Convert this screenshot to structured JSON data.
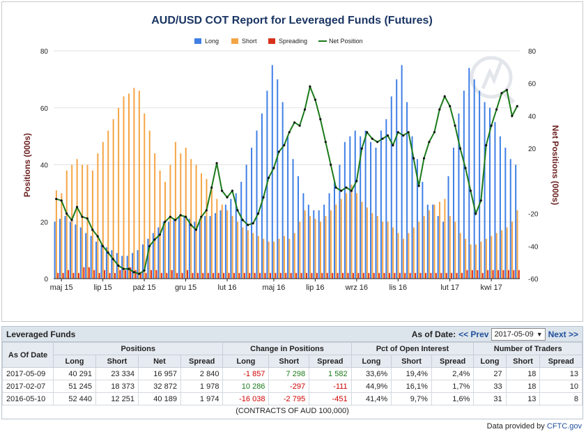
{
  "chart_data": {
    "type": "bar",
    "title": "AUD/USD COT Report for Leveraged Funds (Futures)",
    "ylabel": "Positions (000s)",
    "ylabel_right": "Net Positions (000s)",
    "ylim": [
      0,
      80
    ],
    "ylim_right": [
      -60,
      80
    ],
    "yticks": [
      "0",
      "20",
      "40",
      "60",
      "80"
    ],
    "yticks_right": [
      "-60",
      "-40",
      "-20",
      "20",
      "40",
      "60",
      "80"
    ],
    "xticks": [
      "maj 15",
      "lip 15",
      "paź 15",
      "gru 15",
      "lut 16",
      "maj 16",
      "lip 16",
      "wrz 16",
      "lis 16",
      "lut 17",
      "kwi 17"
    ],
    "xtick_index": [
      1,
      9,
      17,
      25,
      33,
      42,
      50,
      58,
      66,
      76,
      84
    ],
    "legend_placement": "top-center",
    "colors": {
      "long": "#3f7fe6",
      "short": "#f4a545",
      "spreading": "#d9301a",
      "net": "#1a7a1a"
    },
    "series": [
      {
        "name": "Long",
        "values": [
          20,
          21,
          22,
          20,
          19,
          18,
          16,
          15,
          13,
          12,
          11,
          10,
          9,
          8,
          8,
          9,
          10,
          12,
          14,
          16,
          18,
          20,
          20,
          21,
          22,
          22,
          21,
          20,
          21,
          22,
          22,
          23,
          24,
          26,
          28,
          30,
          34,
          40,
          46,
          52,
          58,
          66,
          75,
          70,
          62,
          50,
          42,
          36,
          30,
          26,
          24,
          24,
          26,
          30,
          34,
          40,
          48,
          50,
          52,
          50,
          52,
          48,
          46,
          52,
          56,
          64,
          70,
          75,
          62,
          50,
          42,
          34,
          26,
          26,
          22,
          20,
          36,
          46,
          58,
          66,
          74,
          70,
          66,
          62,
          60,
          55,
          50,
          46,
          42,
          40
        ]
      },
      {
        "name": "Short",
        "values": [
          31,
          30,
          38,
          40,
          42,
          40,
          40,
          38,
          44,
          48,
          52,
          56,
          60,
          64,
          65,
          67,
          66,
          58,
          52,
          44,
          38,
          34,
          40,
          48,
          44,
          46,
          42,
          40,
          37,
          35,
          32,
          28,
          26,
          24,
          22,
          20,
          18,
          17,
          16,
          15,
          14,
          13,
          13,
          14,
          15,
          14,
          16,
          20,
          24,
          22,
          21,
          20,
          22,
          24,
          26,
          28,
          30,
          33,
          30,
          27,
          25,
          23,
          22,
          20,
          20,
          18,
          16,
          14,
          16,
          18,
          20,
          22,
          24,
          26,
          27,
          28,
          22,
          20,
          16,
          14,
          12,
          12,
          13,
          14,
          15,
          16,
          17,
          18,
          20,
          24
        ]
      },
      {
        "name": "Spreading",
        "values": [
          2,
          2,
          3,
          2,
          2,
          4,
          4,
          3,
          2,
          3,
          2,
          2,
          3,
          3,
          4,
          3,
          2,
          2,
          3,
          3,
          2,
          2,
          3,
          2,
          2,
          3,
          2,
          2,
          2,
          2,
          2,
          2,
          2,
          2,
          2,
          2,
          2,
          2,
          2,
          2,
          2,
          2,
          2,
          2,
          2,
          2,
          2,
          2,
          2,
          2,
          2,
          2,
          2,
          2,
          2,
          2,
          2,
          2,
          2,
          2,
          2,
          2,
          2,
          2,
          2,
          2,
          2,
          2,
          2,
          2,
          2,
          2,
          2,
          2,
          2,
          2,
          2,
          2,
          2,
          3,
          3,
          3,
          2,
          3,
          3,
          3,
          3,
          3,
          3,
          3
        ]
      },
      {
        "name": "Net Position",
        "values": [
          -11,
          -12,
          -20,
          -24,
          -16,
          -22,
          -23,
          -30,
          -34,
          -40,
          -44,
          -48,
          -52,
          -54,
          -54,
          -56,
          -57,
          -55,
          -40,
          -36,
          -33,
          -25,
          -22,
          -24,
          -21,
          -22,
          -27,
          -30,
          -22,
          -18,
          -4,
          11,
          -6,
          -10,
          -6,
          -18,
          -24,
          -27,
          -26,
          -20,
          -10,
          2,
          8,
          18,
          22,
          30,
          36,
          34,
          44,
          58,
          50,
          38,
          24,
          10,
          -4,
          -6,
          -4,
          -6,
          0,
          20,
          30,
          26,
          24,
          26,
          28,
          22,
          30,
          28,
          30,
          14,
          -3,
          14,
          24,
          30,
          44,
          52,
          46,
          34,
          20,
          8,
          -6,
          -20,
          -12,
          22,
          34,
          44,
          54,
          56,
          40,
          46
        ]
      }
    ]
  },
  "table": {
    "title": "Leveraged Funds",
    "as_of_label": "As of Date:",
    "prev_label": "<< Prev",
    "next_label": "Next >>",
    "selected_date": "2017-05-09",
    "dropdown_arrow": "▼",
    "group_headers": [
      "Positions",
      "Change in Positions",
      "Pct of Open Interest",
      "Number of Traders"
    ],
    "as_of_header": "As Of Date",
    "sub_headers": [
      "Long",
      "Short",
      "Net",
      "Spread",
      "Long",
      "Short",
      "Spread",
      "Long",
      "Short",
      "Spread",
      "Long",
      "Short",
      "Spread"
    ],
    "rows": [
      {
        "date": "2017-05-09",
        "cells": [
          "40 291",
          "23 334",
          "16 957",
          "2 840",
          "-1 857",
          "7 298",
          "1 582",
          "33,6%",
          "19,4%",
          "2,4%",
          "27",
          "18",
          "13"
        ]
      },
      {
        "date": "2017-02-07",
        "cells": [
          "51 245",
          "18 373",
          "32 872",
          "1 978",
          "10 286",
          "-297",
          "-111",
          "44,9%",
          "16,1%",
          "1,7%",
          "33",
          "18",
          "10"
        ]
      },
      {
        "date": "2016-05-10",
        "cells": [
          "52 440",
          "12 251",
          "40 189",
          "1 974",
          "-16 038",
          "-2 795",
          "-451",
          "41,4%",
          "9,7%",
          "1,6%",
          "31",
          "13",
          "8"
        ]
      }
    ],
    "footer": "(CONTRACTS OF AUD 100,000)"
  },
  "credit": {
    "prefix": "Data provided by",
    "source": "CFTC.gov"
  }
}
